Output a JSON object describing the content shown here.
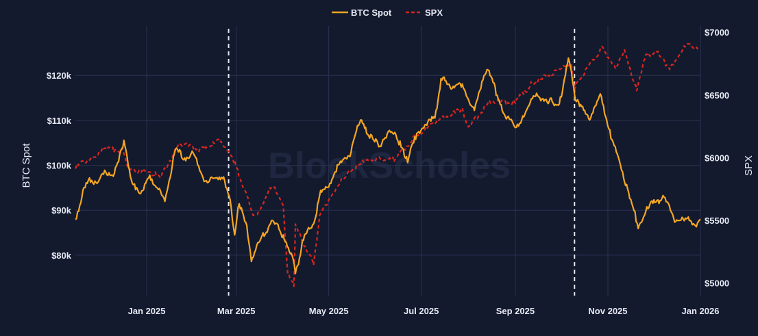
{
  "chart_data": {
    "type": "line",
    "watermark": "BlockScholes",
    "legend_position": "top-center",
    "x_range": [
      "2024-11-15",
      "2026-01-01"
    ],
    "x_ticks": [
      {
        "date": "2025-01-01",
        "label": "Jan 2025"
      },
      {
        "date": "2025-03-01",
        "label": "Mar 2025"
      },
      {
        "date": "2025-05-01",
        "label": "May 2025"
      },
      {
        "date": "2025-07-01",
        "label": "Jul 2025"
      },
      {
        "date": "2025-09-01",
        "label": "Sep 2025"
      },
      {
        "date": "2025-11-01",
        "label": "Nov 2025"
      },
      {
        "date": "2026-01-01",
        "label": "Jan 2026"
      }
    ],
    "y_left": {
      "label": "BTC Spot",
      "range": [
        71000,
        131000
      ],
      "ticks": [
        80000,
        90000,
        100000,
        110000,
        120000
      ],
      "tick_labels": [
        "$80k",
        "$90k",
        "$100k",
        "$110k",
        "$120k"
      ]
    },
    "y_right": {
      "label": "SPX",
      "range": [
        4900,
        7050
      ],
      "ticks": [
        5000,
        5500,
        6000,
        6500,
        7000
      ],
      "tick_labels": [
        "$5000",
        "$5500",
        "$6000",
        "$6500",
        "$7000"
      ]
    },
    "vertical_markers": [
      "2025-02-24",
      "2025-10-10"
    ],
    "grid": true,
    "series": [
      {
        "name": "BTC Spot",
        "color": "#f5a623",
        "axis": "left",
        "style": "solid",
        "x": [
          "2024-11-15",
          "2024-11-20",
          "2024-11-25",
          "2024-11-30",
          "2024-12-05",
          "2024-12-10",
          "2024-12-17",
          "2024-12-22",
          "2024-12-28",
          "2025-01-03",
          "2025-01-08",
          "2025-01-13",
          "2025-01-20",
          "2025-01-26",
          "2025-01-31",
          "2025-02-05",
          "2025-02-10",
          "2025-02-15",
          "2025-02-20",
          "2025-02-25",
          "2025-02-28",
          "2025-03-03",
          "2025-03-08",
          "2025-03-11",
          "2025-03-18",
          "2025-03-25",
          "2025-04-01",
          "2025-04-07",
          "2025-04-09",
          "2025-04-15",
          "2025-04-21",
          "2025-04-25",
          "2025-05-01",
          "2025-05-08",
          "2025-05-15",
          "2025-05-22",
          "2025-05-28",
          "2025-06-03",
          "2025-06-10",
          "2025-06-17",
          "2025-06-22",
          "2025-06-28",
          "2025-07-04",
          "2025-07-10",
          "2025-07-14",
          "2025-07-20",
          "2025-07-28",
          "2025-08-05",
          "2025-08-10",
          "2025-08-14",
          "2025-08-20",
          "2025-08-26",
          "2025-09-01",
          "2025-09-08",
          "2025-09-15",
          "2025-09-22",
          "2025-09-30",
          "2025-10-06",
          "2025-10-10",
          "2025-10-14",
          "2025-10-20",
          "2025-10-27",
          "2025-11-03",
          "2025-11-08",
          "2025-11-14",
          "2025-11-21",
          "2025-11-26",
          "2025-12-02",
          "2025-12-08",
          "2025-12-15",
          "2025-12-22",
          "2025-12-28",
          "2026-01-01"
        ],
        "values": [
          88000,
          94000,
          97000,
          96000,
          99000,
          97000,
          106000,
          96000,
          94000,
          97000,
          95000,
          92000,
          104000,
          101000,
          103000,
          99000,
          96000,
          97500,
          97000,
          93000,
          84000,
          92000,
          86000,
          79000,
          84000,
          88000,
          84000,
          80000,
          76000,
          84000,
          87000,
          93000,
          96000,
          100000,
          103000,
          110000,
          107000,
          104000,
          108000,
          105000,
          101000,
          107000,
          109000,
          111000,
          119000,
          118000,
          117000,
          113000,
          118000,
          122000,
          115000,
          111000,
          108000,
          112000,
          116000,
          114000,
          114000,
          124000,
          116000,
          113000,
          111000,
          115000,
          107000,
          101000,
          95000,
          86000,
          90000,
          92000,
          93000,
          88000,
          88000,
          87000,
          88000
        ]
      },
      {
        "name": "SPX",
        "color": "#d9251e",
        "axis": "right",
        "style": "dashed",
        "x": [
          "2024-11-15",
          "2024-11-25",
          "2024-12-05",
          "2024-12-17",
          "2024-12-20",
          "2025-01-02",
          "2025-01-10",
          "2025-01-23",
          "2025-02-05",
          "2025-02-19",
          "2025-02-28",
          "2025-03-10",
          "2025-03-13",
          "2025-03-25",
          "2025-04-01",
          "2025-04-04",
          "2025-04-08",
          "2025-04-09",
          "2025-04-21",
          "2025-04-25",
          "2025-05-02",
          "2025-05-12",
          "2025-05-20",
          "2025-06-02",
          "2025-06-13",
          "2025-06-27",
          "2025-07-10",
          "2025-07-28",
          "2025-08-01",
          "2025-08-15",
          "2025-09-01",
          "2025-09-12",
          "2025-09-30",
          "2025-10-08",
          "2025-10-10",
          "2025-10-14",
          "2025-10-28",
          "2025-11-06",
          "2025-11-12",
          "2025-11-20",
          "2025-11-26",
          "2025-12-03",
          "2025-12-11",
          "2025-12-17",
          "2025-12-24",
          "2025-12-31"
        ],
        "values": [
          5930,
          5990,
          6080,
          6050,
          5900,
          5890,
          5840,
          6120,
          6060,
          6140,
          5960,
          5630,
          5520,
          5780,
          5610,
          5070,
          4980,
          5450,
          5160,
          5530,
          5690,
          5850,
          5950,
          5990,
          5980,
          6170,
          6280,
          6390,
          6240,
          6450,
          6440,
          6590,
          6700,
          6750,
          6550,
          6640,
          6880,
          6720,
          6850,
          6540,
          6810,
          6850,
          6720,
          6790,
          6920,
          6850
        ]
      }
    ]
  }
}
